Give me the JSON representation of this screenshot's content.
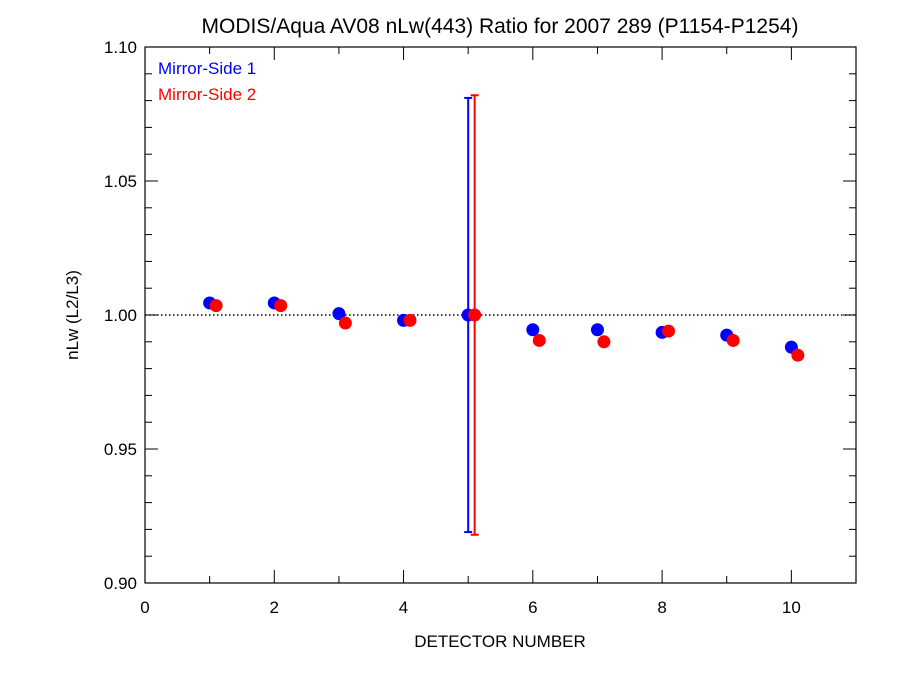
{
  "chart_data": {
    "type": "scatter",
    "title": "MODIS/Aqua AV08 nLw(443) Ratio for 2007 289 (P1154-P1254)",
    "xlabel": "DETECTOR NUMBER",
    "ylabel": "nLw (L2/L3)",
    "xlim": [
      0,
      11
    ],
    "ylim": [
      0.9,
      1.1
    ],
    "xticks": [
      0,
      2,
      4,
      6,
      8,
      10
    ],
    "xtick_labels": [
      "0",
      "2",
      "4",
      "6",
      "8",
      "10"
    ],
    "yticks": [
      0.9,
      0.95,
      1.0,
      1.05,
      1.1
    ],
    "ytick_labels": [
      "0.90",
      "0.95",
      "1.00",
      "1.05",
      "1.10"
    ],
    "reference_line": 1.0,
    "legend_position": "top-left",
    "series": [
      {
        "name": "Mirror-Side 1",
        "color": "#0000ff",
        "x": [
          1,
          2,
          3,
          4,
          5,
          6,
          7,
          8,
          9,
          10
        ],
        "y": [
          1.0045,
          1.0045,
          1.0005,
          0.998,
          1.0,
          0.9945,
          0.9945,
          0.9935,
          0.9925,
          0.988
        ],
        "error_bars": [
          {
            "x": 5,
            "low": 0.919,
            "high": 1.081
          }
        ]
      },
      {
        "name": "Mirror-Side 2",
        "color": "#ff0000",
        "x": [
          1.1,
          2.1,
          3.1,
          4.1,
          5.1,
          6.1,
          7.1,
          8.1,
          9.1,
          10.1
        ],
        "y": [
          1.0035,
          1.0035,
          0.997,
          0.998,
          1.0,
          0.9905,
          0.99,
          0.994,
          0.9905,
          0.985
        ],
        "error_bars": [
          {
            "x": 5.1,
            "low": 0.918,
            "high": 1.082
          }
        ]
      }
    ]
  }
}
